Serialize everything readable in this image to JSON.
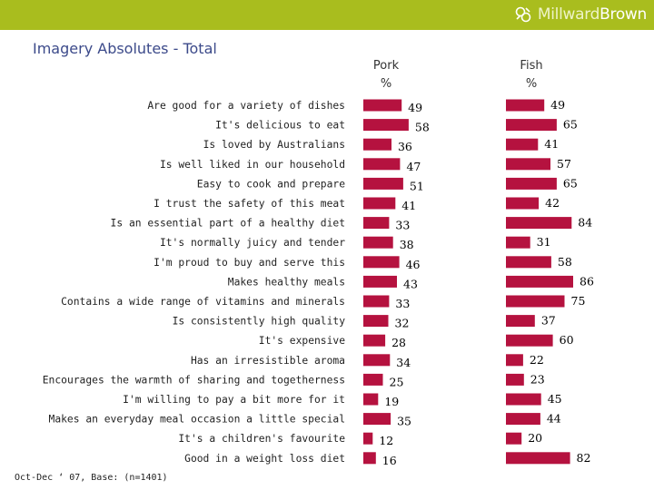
{
  "header": {
    "brand_part1": "Millward",
    "brand_part2": "Brown",
    "bar_color": "#a9bd1e"
  },
  "title": "Imagery Absolutes - Total",
  "columns": [
    {
      "name": "Pork",
      "unit": "%"
    },
    {
      "name": "Fish",
      "unit": "%"
    }
  ],
  "footnote": "Oct-Dec ‘ 07, Base: (n=1401)",
  "chart_data": {
    "type": "bar",
    "orientation": "horizontal",
    "title": "Imagery Absolutes - Total",
    "xlabel": "%",
    "ylabel": "",
    "bar_color": "#b5123f",
    "categories": [
      "Are good for a variety of dishes",
      "It's delicious to eat",
      "Is loved by Australians",
      "Is well liked in our household",
      "Easy to cook and prepare",
      "I trust the safety of this meat",
      "Is an essential part of a healthy diet",
      "It's normally juicy and tender",
      "I'm proud to buy and serve this",
      "Makes healthy meals",
      "Contains a wide range of vitamins and minerals",
      "Is consistently high quality",
      "It's expensive",
      "Has an irresistible aroma",
      "Encourages the warmth of sharing and togetherness",
      "I'm willing to pay a bit more for it",
      "Makes an everyday meal occasion a little special",
      "It's a children's favourite",
      "Good in a weight loss diet"
    ],
    "series": [
      {
        "name": "Pork",
        "values": [
          49,
          58,
          36,
          47,
          51,
          41,
          33,
          38,
          46,
          43,
          33,
          32,
          28,
          34,
          25,
          19,
          35,
          12,
          16
        ]
      },
      {
        "name": "Fish",
        "values": [
          49,
          65,
          41,
          57,
          65,
          42,
          84,
          31,
          58,
          86,
          75,
          37,
          60,
          22,
          23,
          45,
          44,
          20,
          82
        ]
      }
    ]
  }
}
